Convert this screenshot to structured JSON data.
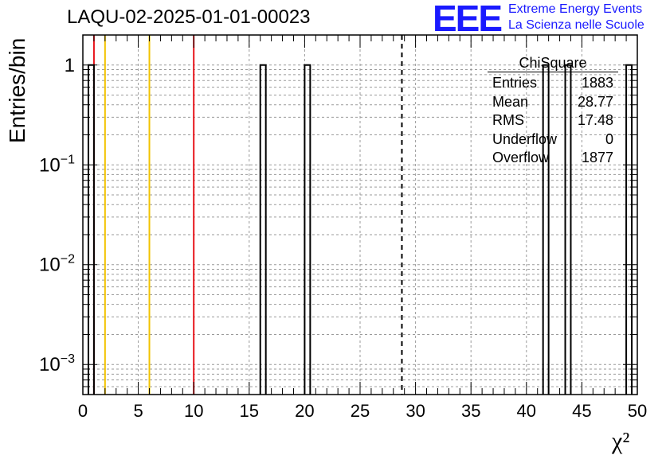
{
  "title": "LAQU-02-2025-01-01-00023",
  "brand": {
    "logo": "EEE",
    "line1": "Extreme Energy Events",
    "line2": "La Scienza nelle Scuole",
    "color": "#1a1aff"
  },
  "stats": {
    "title": "ChiSquare",
    "rows": [
      {
        "label": "Entries",
        "value": "1883"
      },
      {
        "label": "Mean",
        "value": "28.77"
      },
      {
        "label": "RMS",
        "value": "17.48"
      },
      {
        "label": "Underflow",
        "value": "0"
      },
      {
        "label": "Overflow",
        "value": "1877"
      }
    ]
  },
  "chart_data": {
    "type": "bar",
    "title": "LAQU-02-2025-01-01-00023",
    "xlabel": "χ²",
    "ylabel": "Entries/bin",
    "xlim": [
      0,
      50
    ],
    "ylim": [
      0.0005,
      2
    ],
    "yscale": "log",
    "grid": true,
    "bin_width": 0.5,
    "bins": [
      {
        "x_low": 0.5,
        "x_high": 1.0,
        "value": 1
      },
      {
        "x_low": 16.0,
        "x_high": 16.5,
        "value": 1
      },
      {
        "x_low": 20.0,
        "x_high": 20.5,
        "value": 1
      },
      {
        "x_low": 41.5,
        "x_high": 42.0,
        "value": 1
      },
      {
        "x_low": 43.5,
        "x_high": 44.0,
        "value": 1
      },
      {
        "x_low": 49.0,
        "x_high": 49.5,
        "value": 1
      }
    ],
    "xticks": [
      0,
      5,
      10,
      15,
      20,
      25,
      30,
      35,
      40,
      45,
      50
    ],
    "yticks": [
      {
        "value": 0.001,
        "base": "10",
        "exp": "−3"
      },
      {
        "value": 0.01,
        "base": "10",
        "exp": "−2"
      },
      {
        "value": 0.1,
        "base": "10",
        "exp": "−1"
      },
      {
        "value": 1,
        "base": "1",
        "exp": ""
      }
    ],
    "vlines": [
      {
        "x": 1,
        "color": "#e8141b",
        "style": "solid"
      },
      {
        "x": 2,
        "color": "#f2c300",
        "style": "solid"
      },
      {
        "x": 6,
        "color": "#f2c300",
        "style": "solid"
      },
      {
        "x": 10,
        "color": "#e8141b",
        "style": "solid"
      },
      {
        "x": 28.77,
        "color": "#000000",
        "style": "dashed"
      }
    ],
    "colors": {
      "histogram": "#000000",
      "grid": "#9a9a9a",
      "frame": "#000000"
    }
  }
}
